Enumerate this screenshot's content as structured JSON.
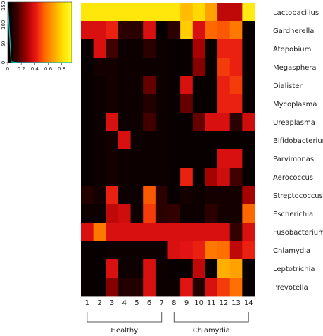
{
  "chart_data": [
    {
      "type": "heatmap",
      "columns": [
        "1",
        "2",
        "3",
        "4",
        "5",
        "6",
        "7",
        "8",
        "9",
        "10",
        "11",
        "12",
        "13",
        "14"
      ],
      "rows": [
        "Lactobacillus",
        "Gardnerella",
        "Atopobium",
        "Megasphera",
        "Dialister",
        "Mycoplasma",
        "Ureaplasma",
        "Bifidobacterium",
        "Parvimonas",
        "Aerococcus",
        "Streptococcus",
        "Escherichia",
        "Fusobacterium",
        "Chlamydia",
        "Leptotrichia",
        "Prevotella"
      ],
      "values": [
        [
          0.9,
          0.9,
          0.9,
          0.9,
          0.9,
          0.9,
          0.9,
          0.9,
          0.78,
          0.85,
          0.72,
          0.35,
          0.35,
          0.92
        ],
        [
          0.4,
          0.4,
          0.45,
          0.1,
          0.1,
          0.4,
          0.02,
          0.1,
          0.82,
          0.4,
          0.58,
          0.55,
          0.62,
          0.02
        ],
        [
          0.02,
          0.4,
          0.15,
          0.03,
          0.03,
          0.1,
          0.03,
          0.02,
          0.02,
          0.3,
          0.02,
          0.45,
          0.45,
          0.02
        ],
        [
          0.02,
          0.05,
          0.05,
          0.03,
          0.03,
          0.03,
          0.03,
          0.02,
          0.02,
          0.25,
          0.02,
          0.5,
          0.45,
          0.02
        ],
        [
          0.02,
          0.03,
          0.05,
          0.03,
          0.03,
          0.2,
          0.03,
          0.02,
          0.4,
          0.02,
          0.02,
          0.45,
          0.5,
          0.02
        ],
        [
          0.02,
          0.03,
          0.05,
          0.03,
          0.03,
          0.08,
          0.03,
          0.02,
          0.2,
          0.02,
          0.02,
          0.45,
          0.45,
          0.02
        ],
        [
          0.02,
          0.03,
          0.4,
          0.03,
          0.03,
          0.15,
          0.03,
          0.02,
          0.02,
          0.2,
          0.4,
          0.4,
          0.1,
          0.38
        ],
        [
          0.02,
          0.03,
          0.05,
          0.4,
          0.03,
          0.03,
          0.03,
          0.02,
          0.02,
          0.02,
          0.02,
          0.02,
          0.02,
          0.02
        ],
        [
          0.02,
          0.03,
          0.05,
          0.03,
          0.03,
          0.03,
          0.03,
          0.02,
          0.02,
          0.02,
          0.02,
          0.4,
          0.4,
          0.02
        ],
        [
          0.02,
          0.03,
          0.05,
          0.03,
          0.03,
          0.03,
          0.03,
          0.02,
          0.45,
          0.02,
          0.3,
          0.38,
          0.15,
          0.02
        ],
        [
          0.08,
          0.05,
          0.45,
          0.03,
          0.03,
          0.55,
          0.1,
          0.02,
          0.05,
          0.03,
          0.05,
          0.05,
          0.05,
          0.3
        ],
        [
          0.03,
          0.03,
          0.35,
          0.38,
          0.03,
          0.5,
          0.1,
          0.12,
          0.03,
          0.03,
          0.1,
          0.05,
          0.05,
          0.58
        ],
        [
          0.4,
          0.62,
          0.4,
          0.4,
          0.4,
          0.4,
          0.4,
          0.4,
          0.4,
          0.4,
          0.4,
          0.4,
          0.12,
          0.4
        ],
        [
          0.02,
          0.02,
          0.03,
          0.03,
          0.03,
          0.03,
          0.03,
          0.4,
          0.42,
          0.45,
          0.62,
          0.6,
          0.35,
          0.45
        ],
        [
          0.02,
          0.02,
          0.4,
          0.03,
          0.03,
          0.4,
          0.03,
          0.02,
          0.02,
          0.35,
          0.02,
          0.75,
          0.72,
          0.02
        ],
        [
          0.02,
          0.02,
          0.25,
          0.08,
          0.08,
          0.4,
          0.03,
          0.03,
          0.42,
          0.08,
          0.4,
          0.5,
          0.6,
          0.02
        ]
      ],
      "groups": [
        {
          "name": "Healthy",
          "columns": [
            "1",
            "2",
            "3",
            "4",
            "5",
            "6",
            "7"
          ]
        },
        {
          "name": "Chlamydia",
          "columns": [
            "8",
            "9",
            "10",
            "11",
            "12",
            "13",
            "14"
          ]
        }
      ]
    },
    {
      "type": "area",
      "x_ticks": [
        "0",
        "0.2",
        "0.4",
        "0.6",
        "0.8"
      ],
      "y_ticks": [
        "0",
        "50",
        "100",
        "150"
      ],
      "xlim": [
        0,
        0.95
      ],
      "ylim": [
        0,
        160
      ],
      "x": [
        0,
        0.05,
        0.1,
        0.15,
        0.2,
        0.25,
        0.3,
        0.35,
        0.4,
        0.45,
        0.5,
        0.55,
        0.6,
        0.65,
        0.7,
        0.75,
        0.8,
        0.85,
        0.9,
        0.95
      ],
      "density": [
        160,
        2,
        1,
        0,
        0,
        0,
        0,
        0,
        0,
        0,
        0,
        0,
        0,
        0,
        0,
        0,
        0,
        0,
        0,
        0
      ]
    }
  ],
  "colors": {
    "stops": [
      "#000000",
      "#3c0000",
      "#a00000",
      "#e61414",
      "#ff6400",
      "#ffa000",
      "#ffdc00",
      "#ffff28"
    ],
    "density_line": "#00bfbf",
    "text": "#222222",
    "axis": "#555555"
  }
}
